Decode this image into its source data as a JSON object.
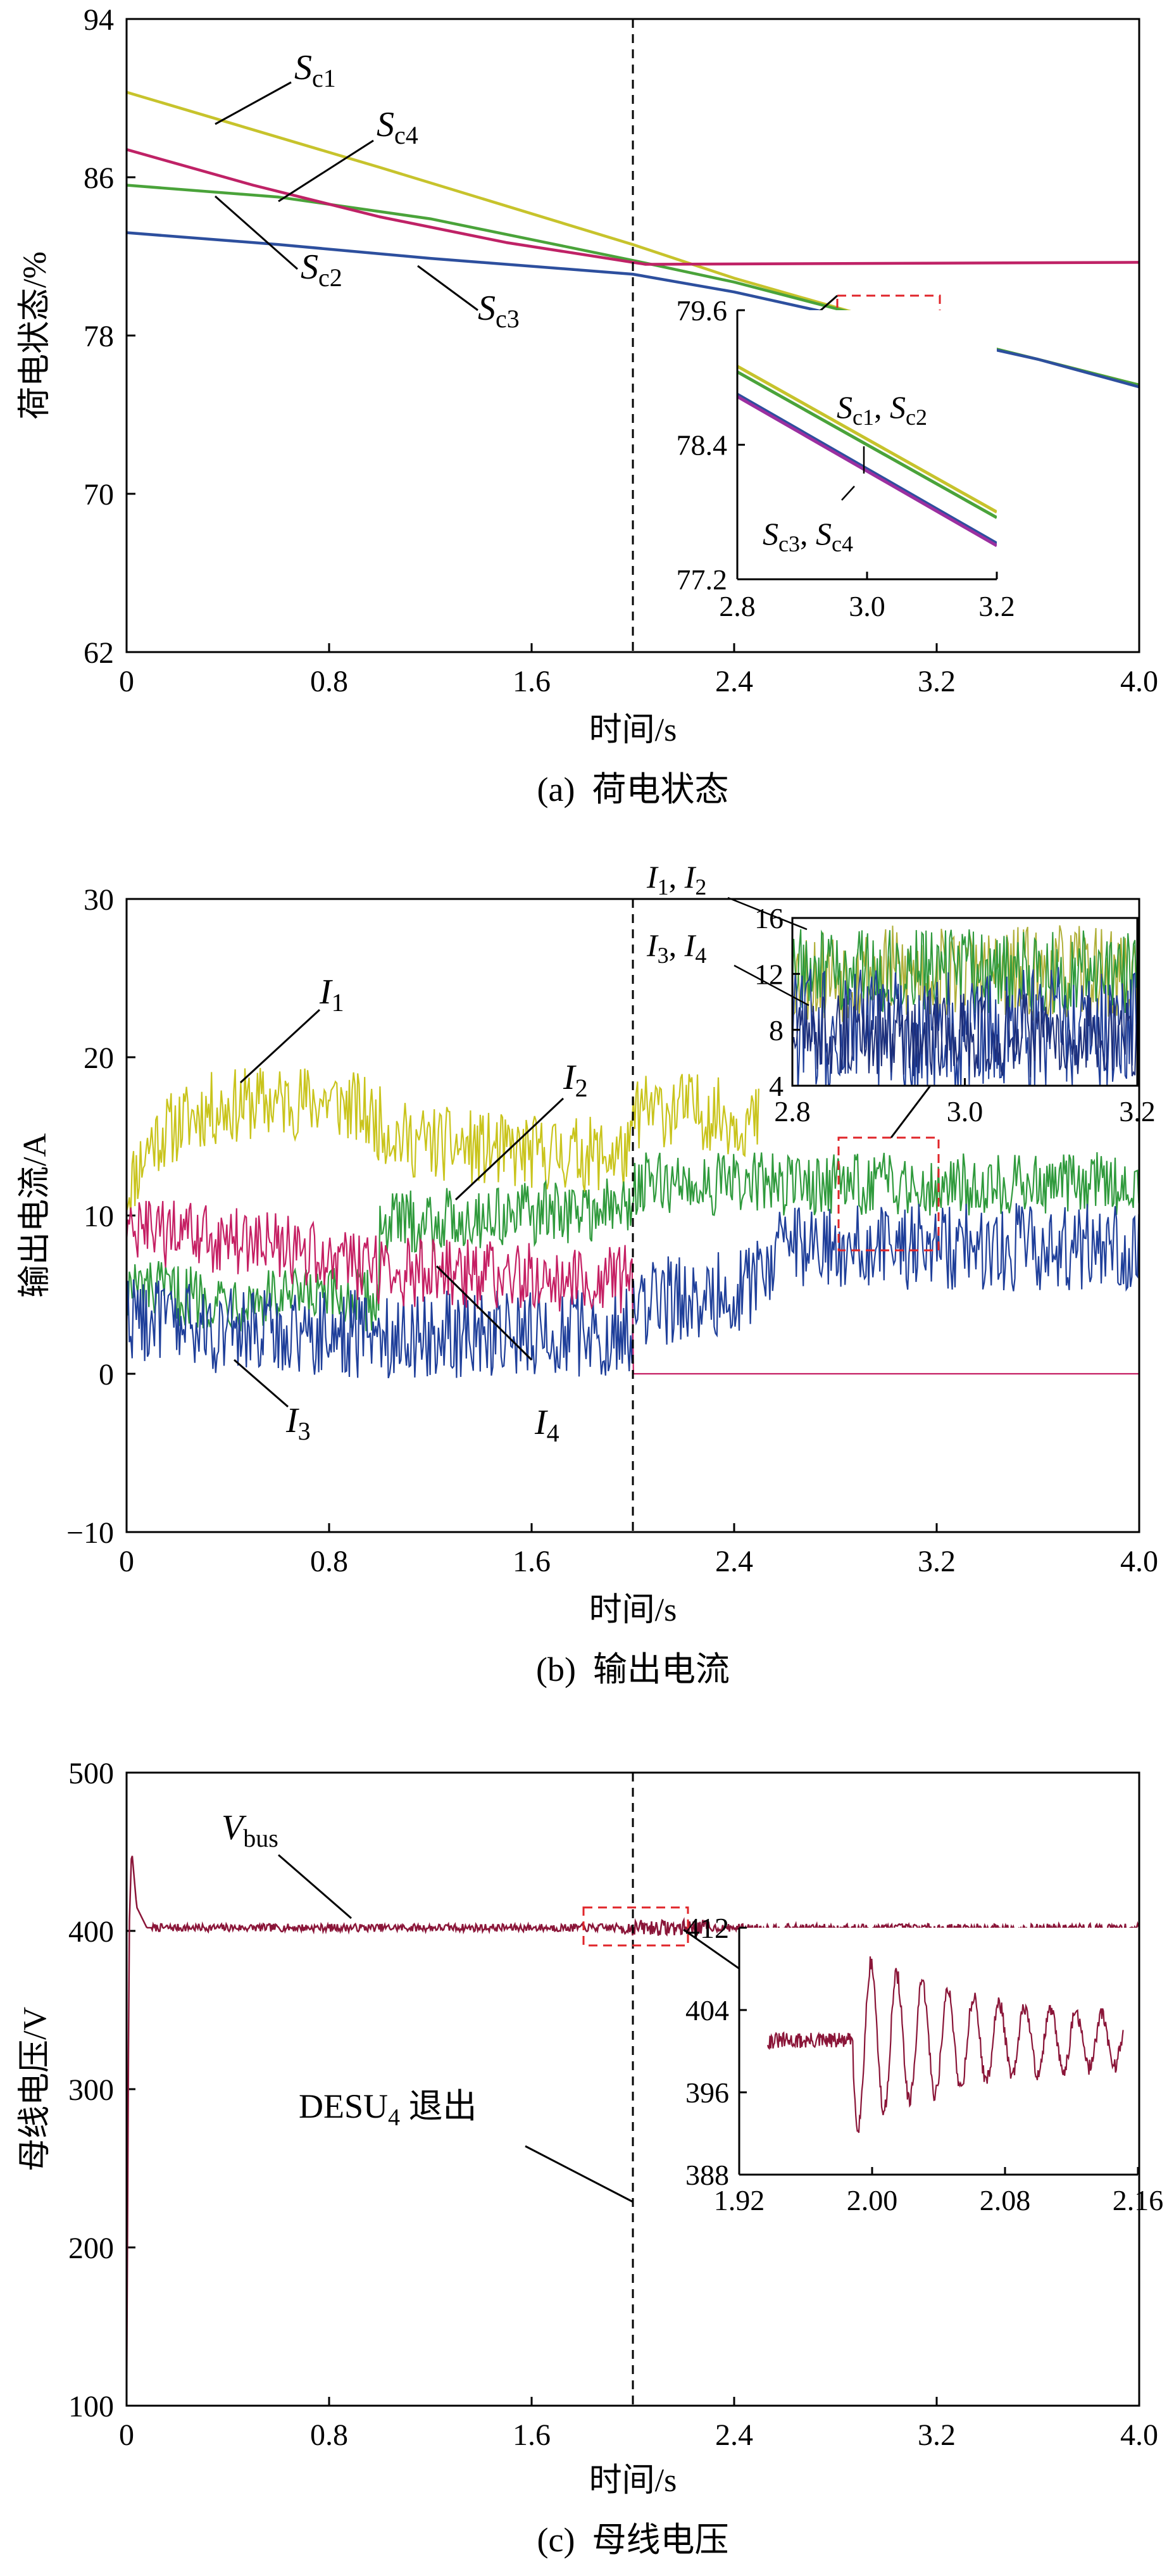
{
  "chart_data": [
    {
      "type": "line",
      "caption": "(a)  荷电状态",
      "ylabel": "荷电状态/%",
      "xlabel": "时间/s",
      "xlim": [
        0,
        4.0
      ],
      "ylim": [
        62,
        94
      ],
      "xticks": [
        "0",
        "0.8",
        "1.6",
        "2.4",
        "3.2",
        "4.0"
      ],
      "yticks": [
        "62",
        "70",
        "78",
        "86",
        "94"
      ],
      "event_line_x": 2.0,
      "series": [
        {
          "name": "Sc1",
          "color": "#c7c32c",
          "x": [
            0,
            1.0,
            2.0,
            2.4,
            3.0,
            3.6,
            4.0
          ],
          "y": [
            90.3,
            86.5,
            82.6,
            80.9,
            78.7,
            76.8,
            75.5
          ]
        },
        {
          "name": "Sc2",
          "color": "#4aa33a",
          "x": [
            0,
            0.6,
            1.2,
            2.0,
            2.4,
            3.0,
            3.6,
            4.0
          ],
          "y": [
            85.6,
            85.0,
            83.9,
            81.8,
            80.7,
            78.7,
            76.8,
            75.5
          ]
        },
        {
          "name": "Sc3",
          "color": "#2d4f9e",
          "x": [
            0,
            0.6,
            1.2,
            2.0,
            2.4,
            3.0,
            3.6,
            4.0
          ],
          "y": [
            83.2,
            82.6,
            81.9,
            81.1,
            80.2,
            78.5,
            76.8,
            75.4
          ]
        },
        {
          "name": "Sc4",
          "color": "#bf2266",
          "x": [
            0,
            0.5,
            1.0,
            1.5,
            2.0,
            2.05,
            4.0
          ],
          "y": [
            87.4,
            85.6,
            84.0,
            82.7,
            81.7,
            81.6,
            81.7
          ]
        }
      ],
      "annotations": [
        "Sc1",
        "Sc4",
        "Sc2",
        "Sc3"
      ],
      "inset": {
        "xlim": [
          2.8,
          3.2
        ],
        "ylim": [
          77.2,
          79.6
        ],
        "xticks": [
          "2.8",
          "3.0",
          "3.2"
        ],
        "yticks": [
          "77.2",
          "78.4",
          "79.6"
        ],
        "labels": [
          "Sc1, Sc2",
          "Sc3, Sc4"
        ],
        "series": [
          {
            "name": "Sc1",
            "color": "#c7c32c",
            "x": [
              2.8,
              3.2
            ],
            "y": [
              79.1,
              77.8
            ]
          },
          {
            "name": "Sc2",
            "color": "#4aa33a",
            "x": [
              2.8,
              3.2
            ],
            "y": [
              79.05,
              77.75
            ]
          },
          {
            "name": "Sc3",
            "color": "#2d4f9e",
            "x": [
              2.8,
              3.2
            ],
            "y": [
              78.85,
              77.52
            ]
          },
          {
            "name": "Sc4",
            "color": "#9b2fa0",
            "x": [
              2.8,
              3.2
            ],
            "y": [
              78.83,
              77.5
            ]
          }
        ]
      }
    },
    {
      "type": "line",
      "caption": "(b)  输出电流",
      "ylabel": "输出电流/A",
      "xlabel": "时间/s",
      "xlim": [
        0,
        4.0
      ],
      "ylim": [
        -10,
        30
      ],
      "xticks": [
        "0",
        "0.8",
        "1.6",
        "2.4",
        "3.2",
        "4.0"
      ],
      "yticks": [
        "−10",
        "0",
        "10",
        "20",
        "30"
      ],
      "event_line_x": 2.0,
      "series": [
        {
          "name": "I1",
          "color": "#c9c41c",
          "x": [
            0,
            0.1,
            0.3,
            0.5,
            0.8,
            0.9,
            1.1,
            1.5,
            2.0,
            2.0,
            2.2,
            2.5
          ],
          "y": [
            11.5,
            14.8,
            16.6,
            17.1,
            17.3,
            16.8,
            14.8,
            14.0,
            13.8,
            16.5,
            16.8,
            15.8
          ],
          "band": 2.4
        },
        {
          "name": "I2",
          "color": "#2f9a3c",
          "x": [
            0,
            0.3,
            0.8,
            1.0,
            1.0,
            1.5,
            2.0,
            2.0,
            2.5,
            4.0
          ],
          "y": [
            5.4,
            4.8,
            4.7,
            4.6,
            9.5,
            10.0,
            10.5,
            12.0,
            12.0,
            12.0
          ],
          "band": 2.0
        },
        {
          "name": "I3",
          "color": "#1f3f9a",
          "x": [
            0,
            0.3,
            1.0,
            2.0,
            2.0,
            2.3,
            2.5,
            2.6,
            4.0
          ],
          "y": [
            3.8,
            2.8,
            2.5,
            2.6,
            4.5,
            4.8,
            6.0,
            8.0,
            8.0
          ],
          "band": 2.8
        },
        {
          "name": "I4",
          "color": "#c51f63",
          "x": [
            0,
            0.5,
            1.0,
            1.5,
            2.0,
            2.0,
            4.0
          ],
          "y": [
            9.0,
            8.3,
            6.5,
            6.2,
            6.0,
            0,
            0
          ],
          "band": 2.2
        }
      ],
      "annotations": [
        "I1",
        "I2",
        "I3",
        "I4"
      ],
      "inset": {
        "xlim": [
          2.8,
          3.2
        ],
        "ylim": [
          4,
          16
        ],
        "xticks": [
          "2.8",
          "3.0",
          "3.2"
        ],
        "yticks": [
          "4",
          "8",
          "12",
          "16"
        ],
        "labels": [
          "I1, I2",
          "I3, I4"
        ],
        "series": [
          {
            "name": "I1",
            "color": "#b0b03a",
            "x": [
              2.8,
              3.2
            ],
            "y": [
              12.0,
              12.0
            ],
            "band": 3.5
          },
          {
            "name": "I2",
            "color": "#2f9a3c",
            "x": [
              2.8,
              3.2
            ],
            "y": [
              12.2,
              12.2
            ],
            "band": 3.0
          },
          {
            "name": "I3",
            "color": "#1f3f9a",
            "x": [
              2.8,
              3.2
            ],
            "y": [
              8.0,
              8.0
            ],
            "band": 4.5
          },
          {
            "name": "I4",
            "color": "#1d2f7a",
            "x": [
              2.8,
              3.2
            ],
            "y": [
              7.6,
              7.6
            ],
            "band": 3.0
          }
        ]
      }
    },
    {
      "type": "line",
      "caption": "(c)  母线电压",
      "ylabel": "母线电压/V",
      "xlabel": "时间/s",
      "xlim": [
        0,
        4.0
      ],
      "ylim": [
        100,
        500
      ],
      "xticks": [
        "0",
        "0.8",
        "1.6",
        "2.4",
        "3.2",
        "4.0"
      ],
      "yticks": [
        "100",
        "200",
        "300",
        "400",
        "500"
      ],
      "event_line_x": 2.0,
      "event_label": "DESU4 退出",
      "series": [
        {
          "name": "Vbus",
          "color": "#8a1538",
          "x": [
            0,
            0.01,
            0.02,
            0.04,
            0.08,
            2.0,
            4.0
          ],
          "y": [
            100,
            400,
            452,
            415,
            402,
            402,
            402
          ]
        }
      ],
      "annotations": [
        "Vbus"
      ],
      "inset": {
        "xlim": [
          1.92,
          2.2
        ],
        "ylim": [
          388,
          412
        ],
        "xticks": [
          "1.92",
          "2.00",
          "2.08",
          "2.16"
        ],
        "yticks": [
          "388",
          "396",
          "404",
          "412"
        ],
        "series": [
          {
            "name": "Vbus",
            "color": "#8a1538",
            "x": [
              1.92,
              2.0,
              2.0,
              2.005,
              2.01,
              2.2
            ],
            "y": [
              401,
              401,
              401,
              392,
              407,
              401
            ]
          }
        ]
      }
    }
  ]
}
